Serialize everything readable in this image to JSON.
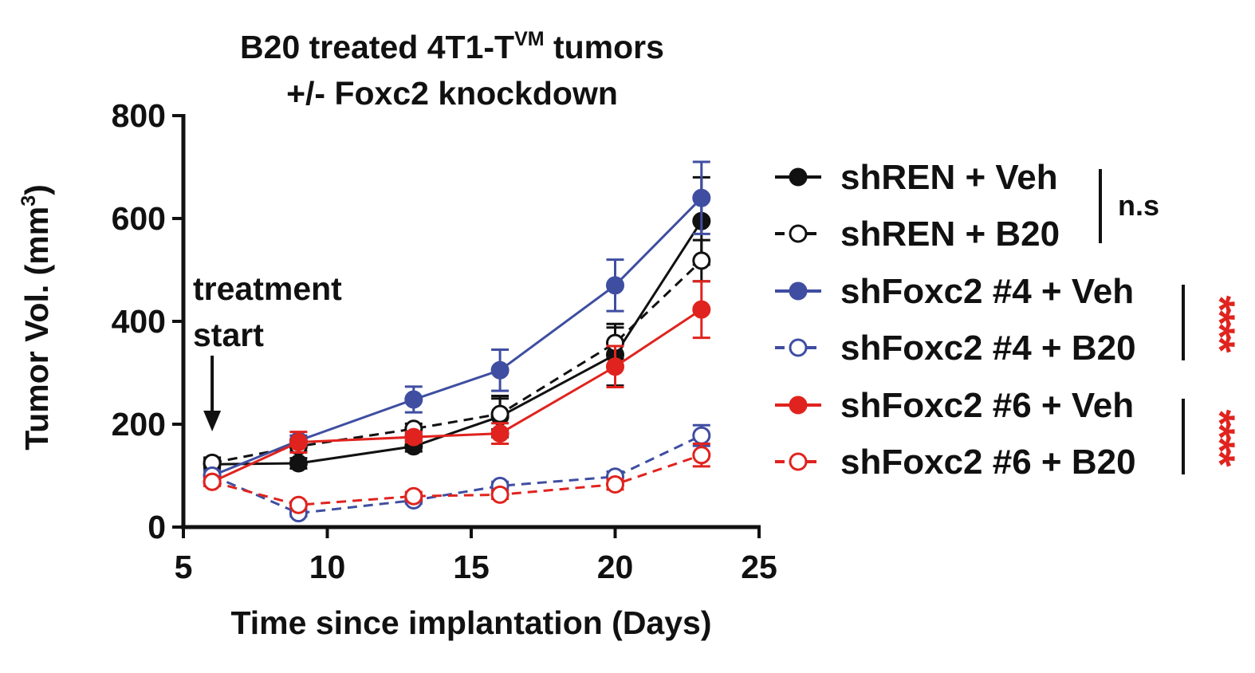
{
  "chart_data": {
    "type": "line",
    "title_line1_main": "B20 treated 4T1-T",
    "title_line1_sup": "VM",
    "title_line1_end": " tumors",
    "title_line2": "+/- Foxc2 knockdown",
    "xlabel": "Time since implantation (Days)",
    "ylabel_main": "Tumor Vol. (mm",
    "ylabel_sup": "3",
    "ylabel_end": ")",
    "xlim": [
      5,
      25
    ],
    "ylim": [
      0,
      800
    ],
    "xticks": [
      5,
      10,
      15,
      20,
      25
    ],
    "yticks": [
      0,
      200,
      400,
      600,
      800
    ],
    "x": [
      6,
      9,
      13,
      16,
      20,
      23
    ],
    "annotation": {
      "line1": "treatment",
      "line2": "start",
      "x": 6
    },
    "series": [
      {
        "name": "shREN + Veh",
        "color": "#111111",
        "dashed": false,
        "filled": true,
        "values": [
          122,
          124,
          157,
          215,
          335,
          595
        ],
        "errors": [
          10,
          10,
          10,
          40,
          60,
          85
        ]
      },
      {
        "name": "shREN + B20",
        "color": "#111111",
        "dashed": true,
        "filled": false,
        "values": [
          125,
          157,
          191,
          220,
          358,
          518
        ],
        "errors": [
          10,
          10,
          10,
          30,
          30,
          40
        ]
      },
      {
        "name": "shFoxc2 #4 + Veh",
        "color": "#3f4ea1",
        "dashed": false,
        "filled": true,
        "values": [
          100,
          168,
          248,
          305,
          470,
          640
        ],
        "errors": [
          10,
          10,
          25,
          40,
          50,
          70
        ]
      },
      {
        "name": "shFoxc2 #4 + B20",
        "color": "#3f4ea1",
        "dashed": true,
        "filled": false,
        "values": [
          100,
          27,
          52,
          80,
          98,
          178
        ],
        "errors": [
          8,
          6,
          6,
          8,
          10,
          20
        ]
      },
      {
        "name": "shFoxc2 #6 + Veh",
        "color": "#e0231e",
        "dashed": false,
        "filled": true,
        "values": [
          88,
          165,
          175,
          182,
          312,
          423
        ],
        "errors": [
          8,
          20,
          10,
          20,
          40,
          55
        ]
      },
      {
        "name": "shFoxc2 #6 + B20",
        "color": "#e0231e",
        "dashed": true,
        "filled": false,
        "values": [
          88,
          43,
          60,
          63,
          83,
          140
        ],
        "errors": [
          8,
          6,
          8,
          8,
          10,
          22
        ]
      }
    ],
    "significance": [
      {
        "label": "n.s",
        "color": "#111111",
        "series": [
          0,
          1
        ]
      },
      {
        "label": "****",
        "color": "#e0231e",
        "series": [
          2,
          3
        ]
      },
      {
        "label": "****",
        "color": "#e0231e",
        "series": [
          4,
          5
        ]
      }
    ]
  }
}
